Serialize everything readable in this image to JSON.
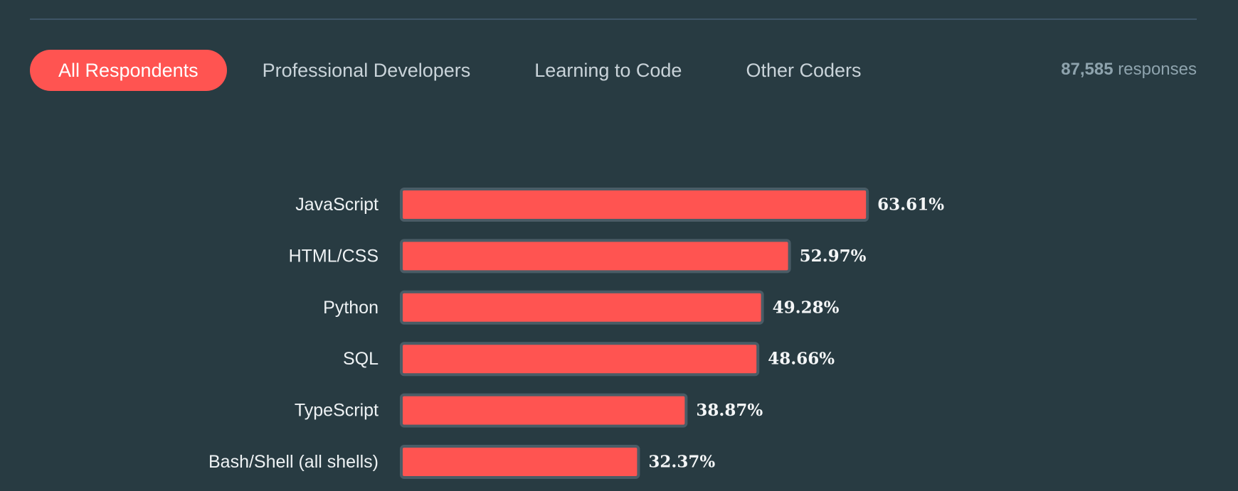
{
  "tabs": [
    {
      "label": "All Respondents",
      "active": true
    },
    {
      "label": "Professional Developers",
      "active": false
    },
    {
      "label": "Learning to Code",
      "active": false
    },
    {
      "label": "Other Coders",
      "active": false
    }
  ],
  "responses": {
    "count": "87,585",
    "label": "responses"
  },
  "colors": {
    "accent": "#ff5451",
    "background": "#283b42",
    "bar_border": "#4a5c66"
  },
  "chart_data": {
    "type": "bar",
    "orientation": "horizontal",
    "categories": [
      "JavaScript",
      "HTML/CSS",
      "Python",
      "SQL",
      "TypeScript",
      "Bash/Shell (all shells)"
    ],
    "values": [
      63.61,
      52.97,
      49.28,
      48.66,
      38.87,
      32.37
    ],
    "value_labels": [
      "63.61%",
      "52.97%",
      "49.28%",
      "48.66%",
      "38.87%",
      "32.37%"
    ],
    "unit": "%",
    "xlim": [
      0,
      100
    ],
    "title": "",
    "xlabel": "",
    "ylabel": "",
    "grid": false
  }
}
